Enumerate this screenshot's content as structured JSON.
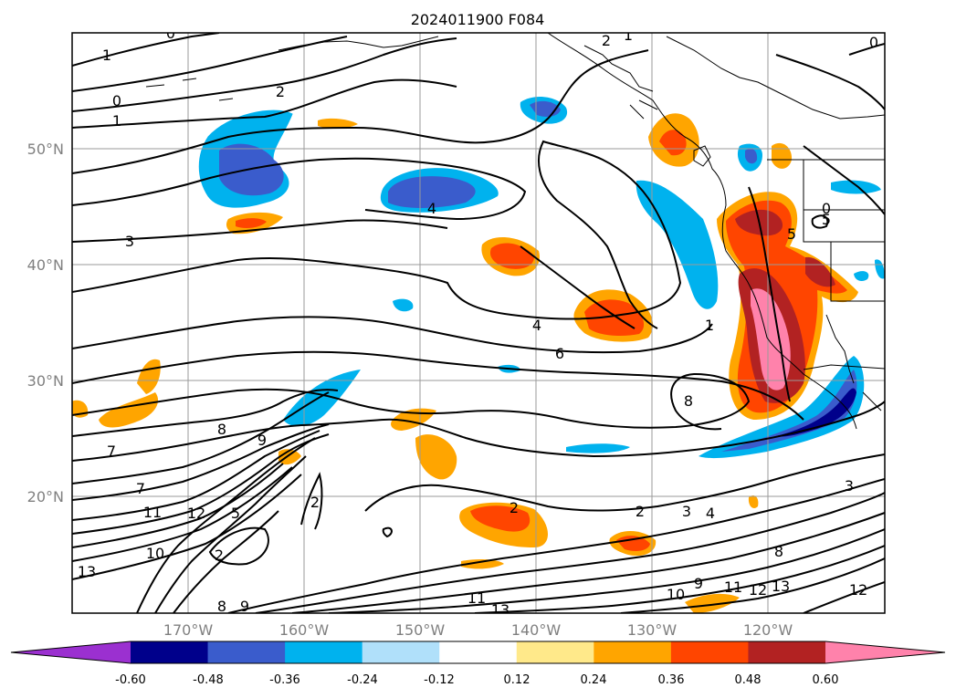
{
  "map": {
    "title": "2024011900 F084",
    "lon_labels": [
      "170°W",
      "160°W",
      "150°W",
      "140°W",
      "130°W",
      "120°W"
    ],
    "lat_labels": [
      "50°N",
      "40°N",
      "30°N",
      "20°N"
    ],
    "gridlines": true
  },
  "colorbar": {
    "tick_labels": [
      "-0.60",
      "-0.48",
      "-0.36",
      "-0.24",
      "-0.12",
      "0.12",
      "0.24",
      "0.36",
      "0.48",
      "0.60"
    ],
    "colors": [
      "#9b30d0",
      "#00008b",
      "#3a5ccc",
      "#00b2ee",
      "#b0e0fa",
      "#ffffff",
      "#ffe98a",
      "#ffa500",
      "#ff4500",
      "#b22222",
      "#ff82ab"
    ],
    "extend": "both"
  },
  "contour_labels": {
    "c1": "1",
    "c2": "0",
    "c3": "1",
    "c4": "2",
    "c5": "0",
    "c6": "2",
    "c7": "1",
    "c8": "0",
    "c9": "4",
    "c10": "3",
    "c11": "5",
    "c12": "5",
    "c13": "0",
    "c14": "4",
    "c15": "6",
    "c16": "8",
    "c17": "8",
    "c18": "9",
    "c19": "7",
    "c20": "7",
    "c21": "11",
    "c22": "12",
    "c23": "5",
    "c24": "10",
    "c25": "2",
    "c26": "2",
    "c27": "2",
    "c28": "3",
    "c29": "4",
    "c30": "8",
    "c31": "3",
    "c32": "11",
    "c33": "13",
    "c34": "10",
    "c35": "9",
    "c36": "11",
    "c37": "12",
    "c38": "13",
    "c39": "12",
    "c40": "8",
    "c41": "9",
    "c42": "13",
    "c43": "1",
    "c44": "2"
  }
}
